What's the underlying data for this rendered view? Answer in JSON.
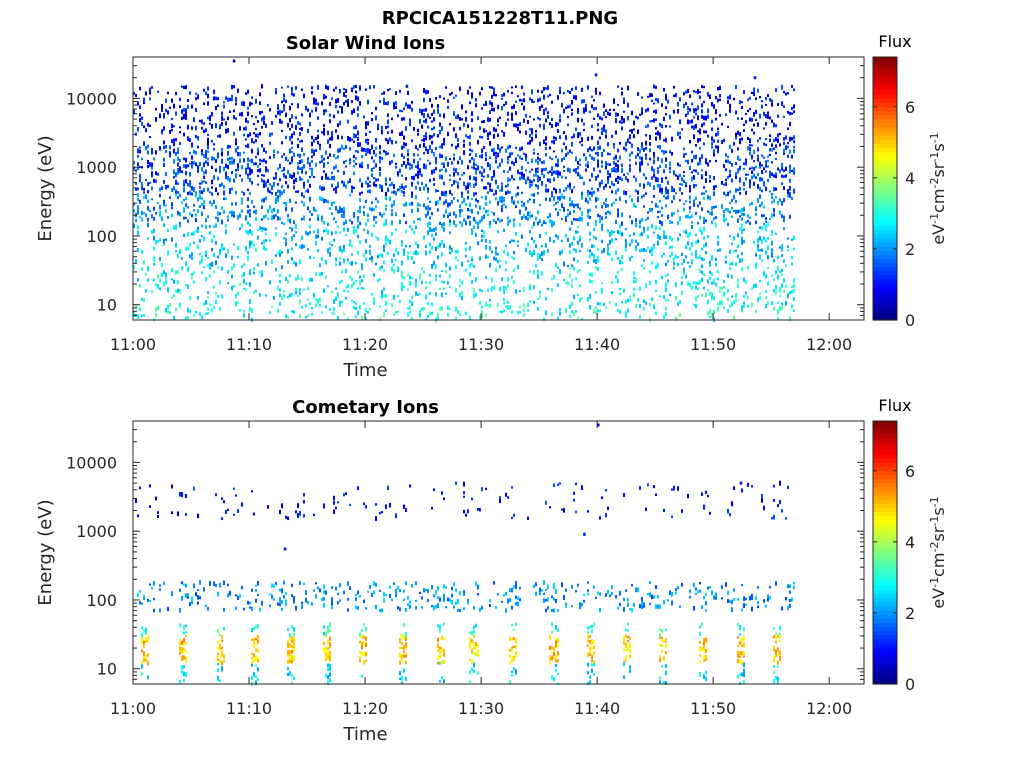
{
  "figure_title": "RPCICA151228T11.PNG",
  "chart_data": [
    {
      "type": "heatmap",
      "title": "Solar Wind Ions",
      "xlabel": "Time",
      "ylabel": "Energy (eV)",
      "x_ticks": [
        "11:00",
        "11:10",
        "11:20",
        "11:30",
        "11:40",
        "11:50",
        "12:00"
      ],
      "xlim_minutes": [
        0,
        63
      ],
      "y_scale": "log",
      "y_ticks": [
        10,
        100,
        1000,
        10000
      ],
      "y_tick_labels": [
        "10",
        "100",
        "1000",
        "10000"
      ],
      "ylim": [
        6,
        40000
      ],
      "data_extent_minutes": [
        0,
        57
      ],
      "colorbar": {
        "title": "Flux",
        "label": "eV-1cm-2sr-1s-1",
        "range": [
          0,
          7.4
        ],
        "ticks": [
          0,
          2,
          4,
          6
        ]
      },
      "bands": [
        {
          "energy_range": [
            2000,
            15000
          ],
          "flux": 1.0,
          "density": 0.25
        },
        {
          "energy_range": [
            400,
            2000
          ],
          "flux": 1.4,
          "density": 0.35
        },
        {
          "energy_range": [
            150,
            400
          ],
          "flux": 1.9,
          "density": 0.28
        },
        {
          "energy_range": [
            35,
            150
          ],
          "flux": 2.4,
          "density": 0.22
        },
        {
          "energy_range": [
            10,
            35
          ],
          "flux": 2.8,
          "density": 0.18
        },
        {
          "energy_range": [
            6,
            10
          ],
          "flux": 3.0,
          "density": 0.22
        }
      ],
      "outliers": [
        {
          "t": 8.6,
          "e": 35000,
          "flux": 0.8
        },
        {
          "t": 39.8,
          "e": 22000,
          "flux": 1.0
        },
        {
          "t": 53.5,
          "e": 20000,
          "flux": 1.0
        },
        {
          "t": 23.5,
          "e": 15000,
          "flux": 1.0
        }
      ]
    },
    {
      "type": "heatmap",
      "title": "Cometary Ions",
      "xlabel": "Time",
      "ylabel": "Energy (eV)",
      "x_ticks": [
        "11:00",
        "11:10",
        "11:20",
        "11:30",
        "11:40",
        "11:50",
        "12:00"
      ],
      "xlim_minutes": [
        0,
        63
      ],
      "y_scale": "log",
      "y_ticks": [
        10,
        100,
        1000,
        10000
      ],
      "y_tick_labels": [
        "10",
        "100",
        "1000",
        "10000"
      ],
      "ylim": [
        6,
        40000
      ],
      "data_extent_minutes": [
        0,
        57
      ],
      "colorbar": {
        "title": "Flux",
        "label": "eV-1cm-2sr-1s-1",
        "range": [
          0,
          7.4
        ],
        "ticks": [
          0,
          2,
          4,
          6
        ]
      },
      "burst_times_minutes": [
        1,
        4.2,
        7.5,
        10.5,
        13.6,
        16.6,
        19.8,
        23.2,
        26.5,
        29.3,
        32.6,
        36.2,
        39.4,
        42.5,
        45.6,
        49,
        52.3,
        55.4
      ],
      "bands": [
        {
          "energy_range": [
            12,
            30
          ],
          "flux": 5.0,
          "density": 0.75
        },
        {
          "energy_range": [
            30,
            45
          ],
          "flux": 3.0,
          "density": 0.5
        },
        {
          "energy_range": [
            6,
            12
          ],
          "flux": 2.6,
          "density": 0.35
        },
        {
          "energy_range": [
            70,
            180
          ],
          "flux": 2.0,
          "density": 0.2
        },
        {
          "energy_range": [
            1500,
            5000
          ],
          "flux": 1.0,
          "density": 0.06
        }
      ],
      "outliers": [
        {
          "t": 40.0,
          "e": 35000,
          "flux": 1.0
        },
        {
          "t": 13.0,
          "e": 550,
          "flux": 1.0
        },
        {
          "t": 38.8,
          "e": 900,
          "flux": 1.0
        },
        {
          "t": 52.3,
          "e": 5000,
          "flux": 1.0
        }
      ]
    }
  ]
}
